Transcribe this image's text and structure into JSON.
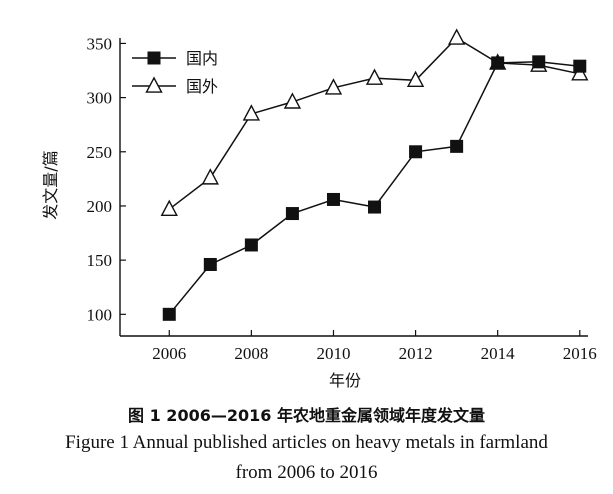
{
  "chart_data": {
    "type": "line",
    "title": "",
    "xlabel": "年份",
    "ylabel": "发文量/篇",
    "x": [
      2006,
      2007,
      2008,
      2009,
      2010,
      2011,
      2012,
      2013,
      2014,
      2015,
      2016
    ],
    "xticks": [
      2006,
      2008,
      2010,
      2012,
      2014,
      2016
    ],
    "yticks": [
      100,
      150,
      200,
      250,
      300,
      350
    ],
    "xlim": [
      2004.8,
      2016.2
    ],
    "ylim": [
      80,
      355
    ],
    "legend_position": "top-left",
    "grid": false,
    "series": [
      {
        "name": "国内",
        "marker": "filled-square",
        "values": [
          100,
          146,
          164,
          193,
          206,
          199,
          250,
          255,
          332,
          333,
          329
        ]
      },
      {
        "name": "国外",
        "marker": "open-triangle",
        "values": [
          197,
          226,
          285,
          296,
          309,
          318,
          316,
          355,
          332,
          330,
          322
        ]
      }
    ]
  },
  "caption": {
    "cn": "图 1  2006—2016 年农地重金属领域年度发文量",
    "en_line1": "Figure 1  Annual published articles on heavy metals in farmland",
    "en_line2": "from 2006 to 2016"
  },
  "colors": {
    "ink": "#111111",
    "background": "#ffffff"
  }
}
